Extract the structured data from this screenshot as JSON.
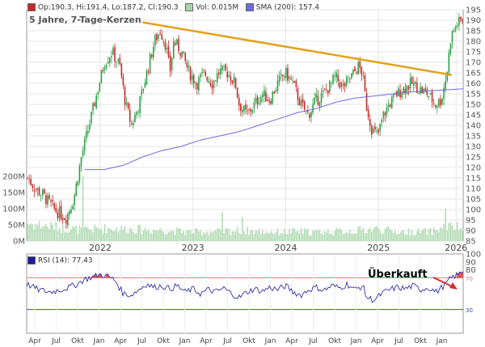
{
  "legend": {
    "op": "Op:190.3",
    "hi": "Hi:191.4",
    "lo": "Lo:187.2",
    "cl": "Cl:190.3",
    "vol": "Vol: 0.015M",
    "sma": "SMA (200): 157.4",
    "op_color": "#c62828",
    "vol_color": "#a5d6a7",
    "sma_color": "#6a6ae0"
  },
  "title": "5 Jahre, 7-Tage-Kerzen",
  "rsi_legend": "RSI (14): 77.43",
  "annotation": "Überkauft",
  "chart_data": [
    {
      "type": "candlestick",
      "title": "5 Jahre, 7-Tage-Kerzen",
      "ylim": [
        85,
        195
      ],
      "y_ticks": [
        85,
        90,
        95,
        100,
        105,
        110,
        115,
        120,
        125,
        130,
        135,
        140,
        145,
        150,
        155,
        160,
        165,
        170,
        175,
        180,
        185,
        190,
        195
      ],
      "x_ticks": [
        "2022",
        "2023",
        "2024",
        "2025",
        "2026"
      ],
      "x_tick_fraction": [
        0.1685,
        0.381,
        0.5935,
        0.8061,
        0.9838
      ],
      "close_path": [
        [
          0.0,
          115
        ],
        [
          0.02,
          110
        ],
        [
          0.04,
          107
        ],
        [
          0.07,
          100
        ],
        [
          0.1,
          96
        ],
        [
          0.12,
          105
        ],
        [
          0.14,
          125
        ],
        [
          0.16,
          140
        ],
        [
          0.18,
          155
        ],
        [
          0.2,
          170
        ],
        [
          0.22,
          175
        ],
        [
          0.24,
          168
        ],
        [
          0.255,
          150
        ],
        [
          0.27,
          140
        ],
        [
          0.29,
          150
        ],
        [
          0.31,
          165
        ],
        [
          0.33,
          180
        ],
        [
          0.345,
          185
        ],
        [
          0.36,
          178
        ],
        [
          0.37,
          165
        ],
        [
          0.38,
          180
        ],
        [
          0.4,
          175
        ],
        [
          0.42,
          165
        ],
        [
          0.44,
          160
        ],
        [
          0.46,
          165
        ],
        [
          0.48,
          160
        ],
        [
          0.5,
          166
        ],
        [
          0.52,
          165
        ],
        [
          0.54,
          160
        ],
        [
          0.55,
          150
        ],
        [
          0.57,
          145
        ],
        [
          0.59,
          150
        ],
        [
          0.61,
          155
        ],
        [
          0.63,
          152
        ],
        [
          0.65,
          160
        ],
        [
          0.67,
          165
        ],
        [
          0.69,
          160
        ],
        [
          0.71,
          150
        ],
        [
          0.73,
          145
        ],
        [
          0.75,
          152
        ],
        [
          0.77,
          155
        ],
        [
          0.79,
          160
        ],
        [
          0.8,
          163
        ],
        [
          0.82,
          158
        ],
        [
          0.84,
          163
        ],
        [
          0.86,
          168
        ],
        [
          0.87,
          165
        ],
        [
          0.88,
          150
        ],
        [
          0.895,
          138
        ],
        [
          0.91,
          135
        ],
        [
          0.925,
          145
        ],
        [
          0.94,
          150
        ],
        [
          0.96,
          155
        ],
        [
          0.98,
          158
        ],
        [
          1.0,
          160
        ],
        [
          1.02,
          157
        ],
        [
          1.04,
          155
        ],
        [
          1.06,
          150
        ],
        [
          1.075,
          152
        ],
        [
          1.09,
          165
        ],
        [
          1.1,
          182
        ],
        [
          1.115,
          188
        ],
        [
          1.13,
          190.3
        ]
      ],
      "sma200_path": [
        [
          0.15,
          119
        ],
        [
          0.2,
          119
        ],
        [
          0.25,
          121
        ],
        [
          0.3,
          125
        ],
        [
          0.35,
          128
        ],
        [
          0.4,
          130
        ],
        [
          0.45,
          133
        ],
        [
          0.5,
          135
        ],
        [
          0.55,
          137
        ],
        [
          0.6,
          140
        ],
        [
          0.65,
          143
        ],
        [
          0.7,
          146
        ],
        [
          0.75,
          148
        ],
        [
          0.8,
          151
        ],
        [
          0.85,
          153
        ],
        [
          0.9,
          154
        ],
        [
          0.95,
          155
        ],
        [
          1.0,
          156
        ],
        [
          1.05,
          156.5
        ],
        [
          1.13,
          157.4
        ]
      ],
      "trendline": [
        [
          0.3,
          189
        ],
        [
          1.1,
          164
        ]
      ],
      "volume_axis": {
        "ticks": [
          "0M",
          "50M",
          "100M",
          "150M",
          "200M"
        ],
        "max": 220
      },
      "volume_seed_level": [
        [
          0.0,
          55
        ],
        [
          0.1,
          40
        ],
        [
          0.15,
          35
        ],
        [
          0.2,
          40
        ],
        [
          0.25,
          38
        ],
        [
          0.3,
          36
        ],
        [
          0.35,
          34
        ],
        [
          0.4,
          30
        ],
        [
          0.45,
          28
        ],
        [
          0.5,
          30
        ],
        [
          0.55,
          33
        ],
        [
          0.6,
          30
        ],
        [
          0.65,
          28
        ],
        [
          0.7,
          30
        ],
        [
          0.75,
          28
        ],
        [
          0.8,
          30
        ],
        [
          0.85,
          32
        ],
        [
          0.9,
          38
        ],
        [
          0.95,
          30
        ],
        [
          1.0,
          28
        ],
        [
          1.05,
          30
        ],
        [
          1.09,
          45
        ],
        [
          1.13,
          40
        ]
      ],
      "volume_spikes": [
        [
          0.145,
          200
        ],
        [
          0.505,
          90
        ],
        [
          0.56,
          75
        ],
        [
          1.085,
          100
        ]
      ]
    },
    {
      "type": "line",
      "name": "RSI (14)",
      "ylim": [
        0,
        100
      ],
      "y_ticks": [
        100,
        90,
        80,
        70,
        30
      ],
      "reference_lines": [
        70,
        30
      ],
      "x_ticks": [
        "Apr",
        "Jul",
        "Okt",
        "Jan",
        "Apr",
        "Jul",
        "Okt",
        "Jan",
        "Apr",
        "Jul",
        "Okt",
        "Jan",
        "Apr",
        "Jul",
        "Okt",
        "Jan",
        "Apr",
        "Jul",
        "Okt",
        "Jan"
      ],
      "rsi_path": [
        [
          0.0,
          62
        ],
        [
          0.03,
          55
        ],
        [
          0.06,
          52
        ],
        [
          0.09,
          55
        ],
        [
          0.11,
          58
        ],
        [
          0.13,
          62
        ],
        [
          0.15,
          68
        ],
        [
          0.17,
          71
        ],
        [
          0.19,
          74
        ],
        [
          0.21,
          72
        ],
        [
          0.23,
          66
        ],
        [
          0.25,
          50
        ],
        [
          0.27,
          48
        ],
        [
          0.29,
          55
        ],
        [
          0.31,
          62
        ],
        [
          0.33,
          58
        ],
        [
          0.35,
          60
        ],
        [
          0.37,
          56
        ],
        [
          0.39,
          60
        ],
        [
          0.41,
          52
        ],
        [
          0.43,
          56
        ],
        [
          0.45,
          50
        ],
        [
          0.47,
          55
        ],
        [
          0.49,
          52
        ],
        [
          0.51,
          57
        ],
        [
          0.53,
          50
        ],
        [
          0.55,
          45
        ],
        [
          0.57,
          52
        ],
        [
          0.59,
          56
        ],
        [
          0.61,
          53
        ],
        [
          0.63,
          58
        ],
        [
          0.65,
          55
        ],
        [
          0.67,
          60
        ],
        [
          0.69,
          52
        ],
        [
          0.71,
          48
        ],
        [
          0.73,
          55
        ],
        [
          0.75,
          58
        ],
        [
          0.77,
          54
        ],
        [
          0.79,
          60
        ],
        [
          0.81,
          57
        ],
        [
          0.83,
          62
        ],
        [
          0.85,
          55
        ],
        [
          0.87,
          60
        ],
        [
          0.88,
          45
        ],
        [
          0.9,
          42
        ],
        [
          0.92,
          50
        ],
        [
          0.94,
          55
        ],
        [
          0.96,
          58
        ],
        [
          0.98,
          56
        ],
        [
          1.0,
          60
        ],
        [
          1.02,
          55
        ],
        [
          1.04,
          58
        ],
        [
          1.06,
          52
        ],
        [
          1.08,
          60
        ],
        [
          1.1,
          70
        ],
        [
          1.12,
          75
        ],
        [
          1.13,
          77.43
        ]
      ]
    }
  ]
}
